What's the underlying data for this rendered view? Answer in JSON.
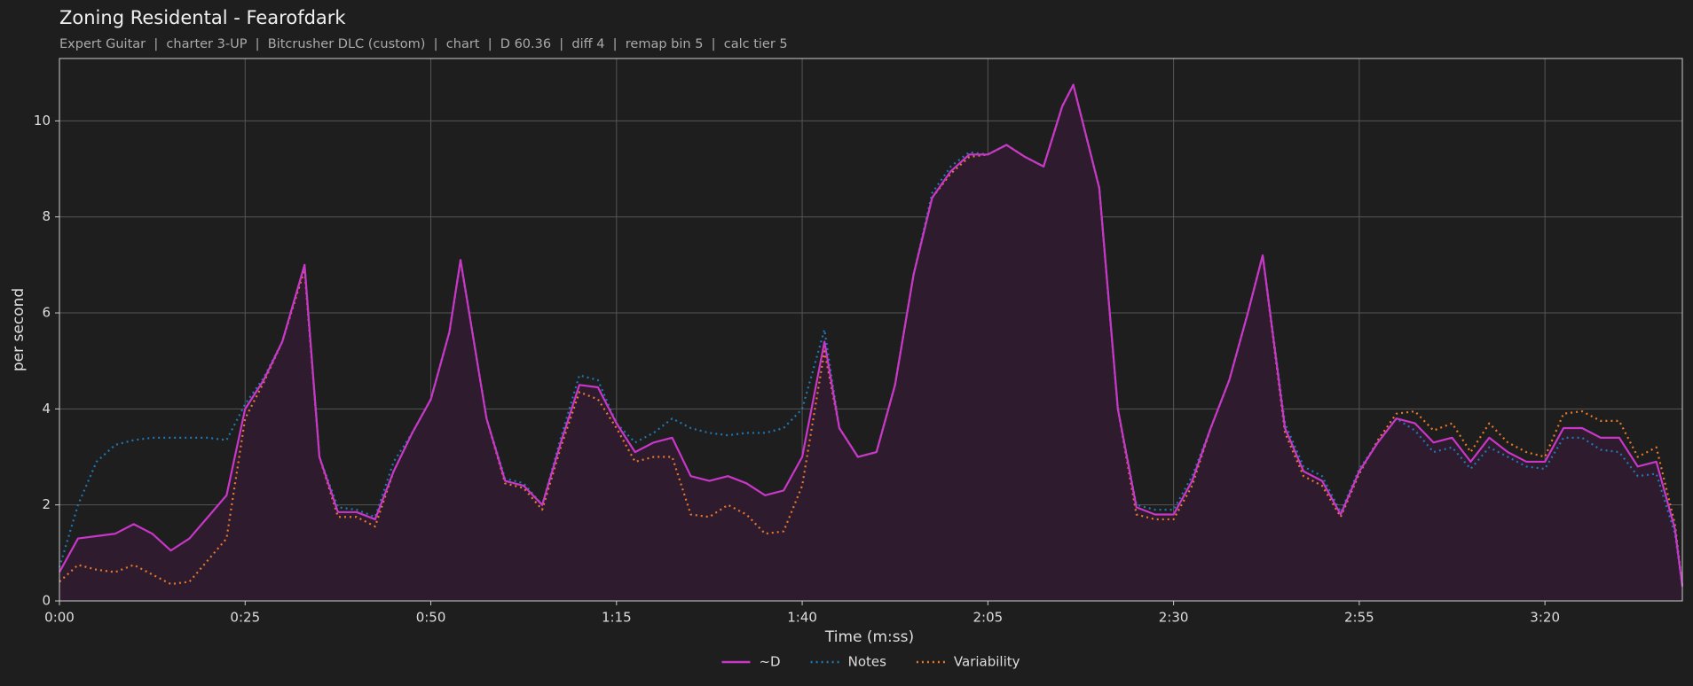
{
  "chart_data": {
    "type": "line",
    "title": "Zoning Residental - Fearofdark",
    "subtitle": "Expert Guitar  |  charter 3-UP  |  Bitcrusher DLC (custom)  |  chart  |  D 60.36  |  diff 4  |  remap bin 5  |  calc tier 5",
    "x_label": "Time (m:ss)",
    "y_label": "per second",
    "x": [
      0,
      2.5,
      5,
      7.5,
      10,
      12.5,
      15,
      17.5,
      20,
      22.5,
      25,
      27.5,
      30,
      33,
      35,
      37.5,
      40,
      42.5,
      45,
      47.5,
      50,
      52.5,
      54,
      57.5,
      60,
      62.5,
      65,
      67.5,
      70,
      72.5,
      75,
      77.5,
      80,
      82.5,
      85,
      87.5,
      90,
      92.5,
      95,
      97.5,
      100,
      103,
      105,
      107.5,
      110,
      112.5,
      115,
      117.5,
      120,
      122.5,
      125,
      127.5,
      130,
      132.5,
      135,
      136.5,
      140,
      142.5,
      145,
      147.5,
      150,
      152.5,
      155,
      157.5,
      160,
      162,
      165,
      167.5,
      170,
      172.5,
      175,
      177.5,
      180,
      182.5,
      185,
      187.5,
      190,
      192.5,
      195,
      197.5,
      200,
      202.5,
      205,
      207.5,
      210,
      212.5,
      215,
      217.5,
      218.5
    ],
    "series": [
      {
        "name": "~D",
        "color": "#c837c8",
        "dash": "solid",
        "fill": "#2e1b2e",
        "values": [
          0.6,
          1.3,
          1.35,
          1.4,
          1.6,
          1.4,
          1.05,
          1.3,
          1.75,
          2.2,
          4.0,
          4.6,
          5.4,
          7.0,
          3.0,
          1.85,
          1.85,
          1.7,
          2.7,
          3.5,
          4.2,
          5.6,
          7.1,
          3.8,
          2.5,
          2.4,
          2.0,
          3.3,
          4.5,
          4.45,
          3.7,
          3.1,
          3.3,
          3.4,
          2.6,
          2.5,
          2.6,
          2.45,
          2.2,
          2.3,
          3.0,
          5.4,
          3.6,
          3.0,
          3.1,
          4.5,
          6.8,
          8.4,
          8.95,
          9.3,
          9.3,
          9.5,
          9.25,
          9.05,
          10.3,
          10.75,
          8.6,
          4.0,
          1.95,
          1.8,
          1.8,
          2.5,
          3.6,
          4.6,
          6.0,
          7.2,
          3.6,
          2.7,
          2.5,
          1.8,
          2.7,
          3.3,
          3.8,
          3.7,
          3.3,
          3.4,
          2.9,
          3.4,
          3.1,
          2.9,
          2.9,
          3.6,
          3.6,
          3.4,
          3.4,
          2.8,
          2.9,
          1.5,
          0.3
        ]
      },
      {
        "name": "Notes",
        "color": "#1f77b4",
        "dash": "dotted",
        "values": [
          0.7,
          2.0,
          2.9,
          3.25,
          3.35,
          3.4,
          3.4,
          3.4,
          3.4,
          3.35,
          4.1,
          4.65,
          5.4,
          7.0,
          3.0,
          1.95,
          1.9,
          1.75,
          2.9,
          3.5,
          4.2,
          5.6,
          7.1,
          3.8,
          2.55,
          2.45,
          2.0,
          3.4,
          4.7,
          4.6,
          3.7,
          3.3,
          3.5,
          3.8,
          3.6,
          3.5,
          3.45,
          3.5,
          3.5,
          3.6,
          4.0,
          5.65,
          3.6,
          3.0,
          3.1,
          4.5,
          6.8,
          8.5,
          9.05,
          9.35,
          9.3,
          9.5,
          9.25,
          9.05,
          10.3,
          10.75,
          8.6,
          4.0,
          2.0,
          1.9,
          1.9,
          2.6,
          3.6,
          4.6,
          6.0,
          7.2,
          3.7,
          2.8,
          2.6,
          1.85,
          2.75,
          3.3,
          3.8,
          3.55,
          3.1,
          3.2,
          2.75,
          3.2,
          3.0,
          2.8,
          2.75,
          3.4,
          3.4,
          3.15,
          3.1,
          2.6,
          2.65,
          1.4,
          0.3
        ]
      },
      {
        "name": "Variability",
        "color": "#e8782a",
        "dash": "dotted",
        "values": [
          0.4,
          0.75,
          0.65,
          0.6,
          0.75,
          0.55,
          0.35,
          0.4,
          0.85,
          1.3,
          3.8,
          4.55,
          5.4,
          6.9,
          3.0,
          1.75,
          1.75,
          1.55,
          2.7,
          3.5,
          4.2,
          5.6,
          7.1,
          3.8,
          2.45,
          2.35,
          1.9,
          3.2,
          4.35,
          4.2,
          3.6,
          2.9,
          3.0,
          3.0,
          1.8,
          1.75,
          2.0,
          1.8,
          1.4,
          1.45,
          2.4,
          5.2,
          3.6,
          3.0,
          3.1,
          4.5,
          6.8,
          8.4,
          8.9,
          9.25,
          9.3,
          9.5,
          9.25,
          9.05,
          10.3,
          10.75,
          8.6,
          4.0,
          1.8,
          1.7,
          1.7,
          2.4,
          3.6,
          4.6,
          6.0,
          7.2,
          3.5,
          2.6,
          2.4,
          1.75,
          2.65,
          3.35,
          3.9,
          3.95,
          3.55,
          3.7,
          3.1,
          3.7,
          3.3,
          3.1,
          3.0,
          3.9,
          3.95,
          3.75,
          3.75,
          3.0,
          3.2,
          1.6,
          0.3
        ]
      }
    ],
    "xlim": [
      0,
      218.5
    ],
    "xticks": [
      {
        "value": 0,
        "label": "0:00"
      },
      {
        "value": 25,
        "label": "0:25"
      },
      {
        "value": 50,
        "label": "0:50"
      },
      {
        "value": 75,
        "label": "1:15"
      },
      {
        "value": 100,
        "label": "1:40"
      },
      {
        "value": 125,
        "label": "2:05"
      },
      {
        "value": 150,
        "label": "2:30"
      },
      {
        "value": 175,
        "label": "2:55"
      },
      {
        "value": 200,
        "label": "3:20"
      }
    ],
    "ylim": [
      0,
      11.3
    ],
    "yticks": [
      0,
      2,
      4,
      6,
      8,
      10
    ],
    "grid": true,
    "legend": "bottom"
  }
}
